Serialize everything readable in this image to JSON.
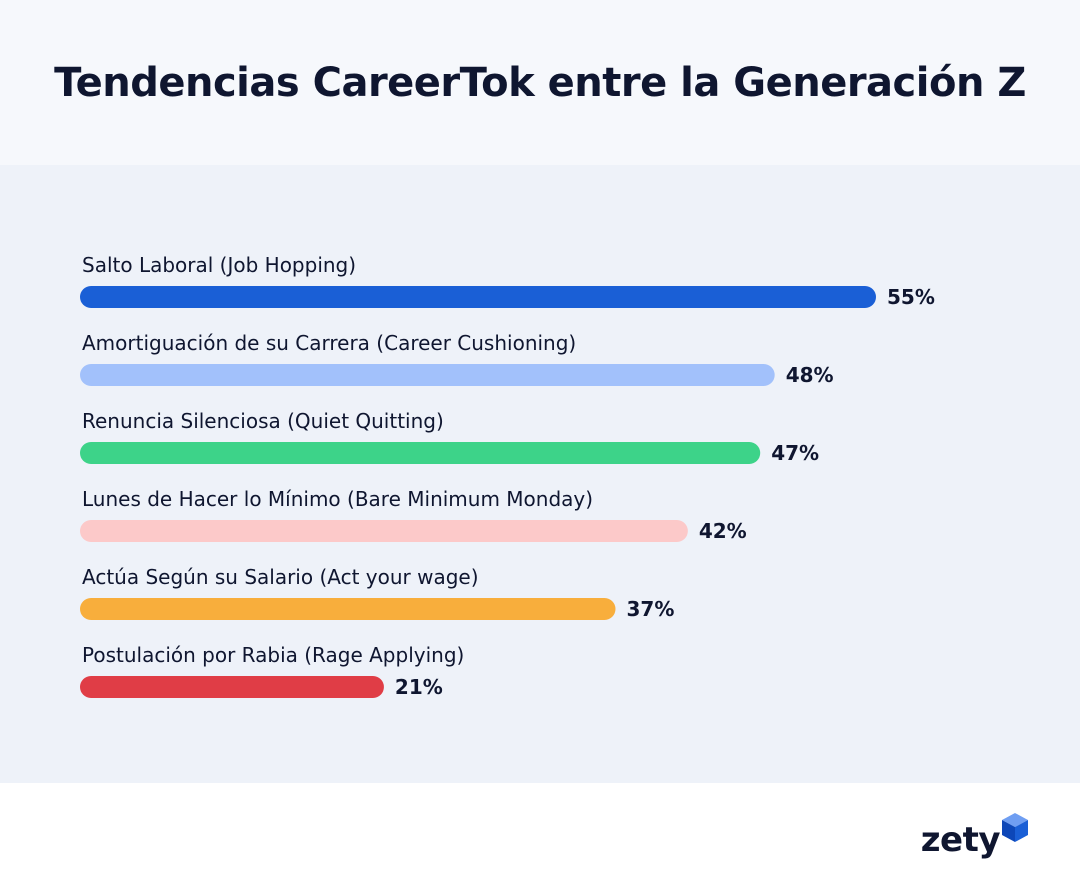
{
  "chart_data": {
    "type": "bar",
    "orientation": "horizontal",
    "title": "Tendencias CareerTok entre la Generación Z",
    "categories": [
      "Salto Laboral (Job Hopping)",
      "Amortiguación de su Carrera (Career Cushioning)",
      "Renuncia Silenciosa (Quiet Quitting)",
      "Lunes de Hacer lo Mínimo (Bare Minimum Monday)",
      "Actúa Según su Salario (Act your wage)",
      "Postulación por Rabia (Rage Applying)"
    ],
    "values": [
      55,
      48,
      47,
      42,
      37,
      21
    ],
    "value_labels": [
      "55%",
      "48%",
      "47%",
      "42%",
      "37%",
      "21%"
    ],
    "colors": [
      "#1a5fd6",
      "#a2c1fb",
      "#3dd389",
      "#fcc9c9",
      "#f8ae3c",
      "#e03d46"
    ],
    "xlabel": "",
    "ylabel": "",
    "xlim": [
      0,
      55
    ],
    "grid": false,
    "legend": "none"
  },
  "brand": {
    "name": "zety",
    "accent": "#1a5fd6"
  }
}
